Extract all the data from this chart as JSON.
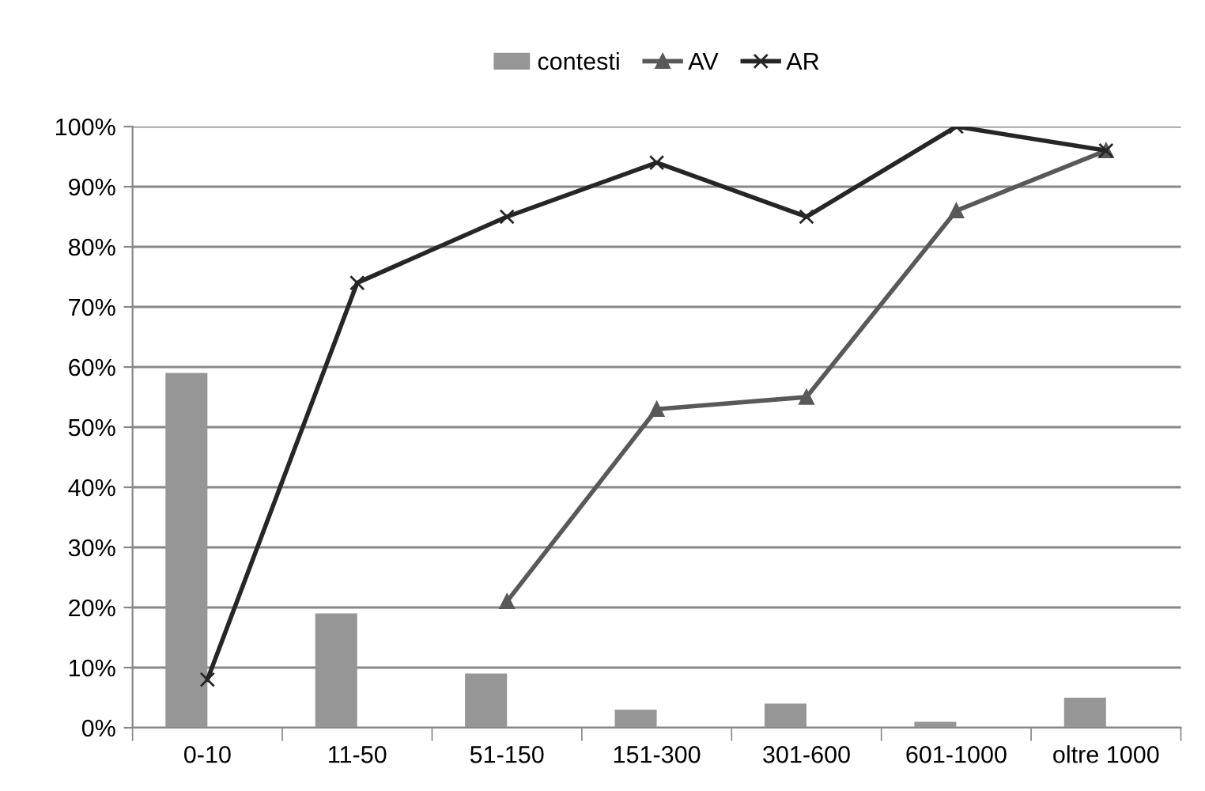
{
  "chart_data": {
    "type": "bar",
    "categories": [
      "0-10",
      "11-50",
      "51-150",
      "151-300",
      "301-600",
      "601-1000",
      "oltre 1000"
    ],
    "series": [
      {
        "name": "contesti",
        "color": "#969696",
        "values": [
          59,
          19,
          9,
          3,
          4,
          1,
          5
        ]
      },
      {
        "name": "AV",
        "type": "line",
        "color": "#595959",
        "marker": "triangle",
        "values": [
          null,
          null,
          21,
          53,
          55,
          86,
          96
        ]
      },
      {
        "name": "AR",
        "type": "line",
        "color": "#262626",
        "marker": "cross",
        "values": [
          8,
          74,
          85,
          94,
          85,
          100,
          96
        ]
      }
    ],
    "ylim": [
      0,
      100
    ],
    "yticks": [
      {
        "value": 0,
        "label": "0%"
      },
      {
        "value": 10,
        "label": "10%"
      },
      {
        "value": 20,
        "label": "20%"
      },
      {
        "value": 30,
        "label": "30%"
      },
      {
        "value": 40,
        "label": "40%"
      },
      {
        "value": 50,
        "label": "50%"
      },
      {
        "value": 60,
        "label": "60%"
      },
      {
        "value": 70,
        "label": "70%"
      },
      {
        "value": 80,
        "label": "80%"
      },
      {
        "value": 90,
        "label": "90%"
      },
      {
        "value": 100,
        "label": "100%"
      }
    ],
    "grid": "y",
    "legend": "top"
  }
}
